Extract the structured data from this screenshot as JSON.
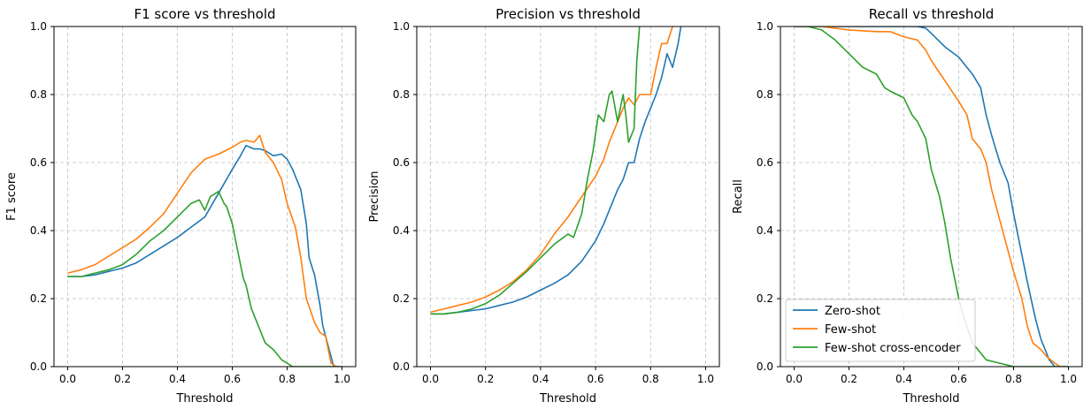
{
  "chart_data": [
    {
      "type": "line",
      "title": "F1 score vs threshold",
      "xlabel": "Threshold",
      "ylabel": "F1 score",
      "xlim": [
        -0.05,
        1.05
      ],
      "ylim": [
        0,
        1
      ],
      "xticks": [
        "0.0",
        "0.2",
        "0.4",
        "0.6",
        "0.8",
        "1.0"
      ],
      "yticks": [
        "0.0",
        "0.2",
        "0.4",
        "0.6",
        "0.8",
        "1.0"
      ],
      "grid": true,
      "series": [
        {
          "name": "Zero-shot",
          "color": "#1f77b4",
          "x": [
            0.0,
            0.05,
            0.1,
            0.15,
            0.2,
            0.25,
            0.3,
            0.35,
            0.4,
            0.45,
            0.5,
            0.55,
            0.6,
            0.63,
            0.65,
            0.68,
            0.7,
            0.72,
            0.75,
            0.78,
            0.8,
            0.82,
            0.85,
            0.87,
            0.88,
            0.9,
            0.92,
            0.93,
            0.95,
            0.97,
            1.0
          ],
          "y": [
            0.265,
            0.265,
            0.27,
            0.28,
            0.29,
            0.305,
            0.33,
            0.355,
            0.38,
            0.41,
            0.44,
            0.51,
            0.58,
            0.62,
            0.65,
            0.64,
            0.64,
            0.635,
            0.62,
            0.625,
            0.61,
            0.58,
            0.52,
            0.42,
            0.32,
            0.27,
            0.18,
            0.12,
            0.06,
            0.0,
            0.0
          ]
        },
        {
          "name": "Few-shot",
          "color": "#ff7f0e",
          "x": [
            0.0,
            0.05,
            0.1,
            0.15,
            0.2,
            0.25,
            0.3,
            0.35,
            0.4,
            0.45,
            0.5,
            0.55,
            0.6,
            0.63,
            0.65,
            0.68,
            0.7,
            0.72,
            0.75,
            0.78,
            0.8,
            0.83,
            0.85,
            0.87,
            0.9,
            0.92,
            0.94,
            0.96,
            0.98,
            1.0
          ],
          "y": [
            0.275,
            0.285,
            0.3,
            0.325,
            0.35,
            0.375,
            0.41,
            0.45,
            0.51,
            0.57,
            0.61,
            0.625,
            0.645,
            0.66,
            0.665,
            0.66,
            0.68,
            0.63,
            0.6,
            0.55,
            0.48,
            0.41,
            0.32,
            0.2,
            0.13,
            0.1,
            0.09,
            0.01,
            0.0,
            0.0
          ]
        },
        {
          "name": "Few-shot cross-encoder",
          "color": "#2ca02c",
          "x": [
            0.0,
            0.05,
            0.1,
            0.15,
            0.2,
            0.25,
            0.3,
            0.35,
            0.4,
            0.45,
            0.48,
            0.5,
            0.52,
            0.55,
            0.57,
            0.58,
            0.6,
            0.62,
            0.64,
            0.65,
            0.67,
            0.7,
            0.72,
            0.75,
            0.78,
            0.8,
            0.82,
            1.0
          ],
          "y": [
            0.265,
            0.265,
            0.275,
            0.285,
            0.3,
            0.33,
            0.37,
            0.4,
            0.44,
            0.48,
            0.49,
            0.46,
            0.5,
            0.515,
            0.48,
            0.47,
            0.42,
            0.34,
            0.26,
            0.24,
            0.17,
            0.11,
            0.07,
            0.05,
            0.02,
            0.01,
            0.0,
            0.0
          ]
        }
      ]
    },
    {
      "type": "line",
      "title": "Precision vs threshold",
      "xlabel": "Threshold",
      "ylabel": "Precision",
      "xlim": [
        -0.05,
        1.05
      ],
      "ylim": [
        0,
        1
      ],
      "xticks": [
        "0.0",
        "0.2",
        "0.4",
        "0.6",
        "0.8",
        "1.0"
      ],
      "yticks": [
        "0.0",
        "0.2",
        "0.4",
        "0.6",
        "0.8",
        "1.0"
      ],
      "grid": true,
      "series": [
        {
          "name": "Zero-shot",
          "color": "#1f77b4",
          "x": [
            0.0,
            0.05,
            0.1,
            0.15,
            0.2,
            0.25,
            0.3,
            0.35,
            0.4,
            0.45,
            0.5,
            0.55,
            0.6,
            0.63,
            0.65,
            0.68,
            0.7,
            0.72,
            0.74,
            0.76,
            0.78,
            0.8,
            0.82,
            0.84,
            0.86,
            0.88,
            0.9,
            0.91
          ],
          "y": [
            0.155,
            0.155,
            0.16,
            0.165,
            0.17,
            0.18,
            0.19,
            0.205,
            0.225,
            0.245,
            0.27,
            0.31,
            0.37,
            0.42,
            0.46,
            0.52,
            0.55,
            0.6,
            0.6,
            0.67,
            0.72,
            0.76,
            0.8,
            0.85,
            0.92,
            0.88,
            0.95,
            1.0
          ]
        },
        {
          "name": "Few-shot",
          "color": "#ff7f0e",
          "x": [
            0.0,
            0.05,
            0.1,
            0.15,
            0.2,
            0.25,
            0.3,
            0.35,
            0.4,
            0.45,
            0.5,
            0.55,
            0.6,
            0.63,
            0.65,
            0.68,
            0.7,
            0.72,
            0.74,
            0.76,
            0.78,
            0.8,
            0.82,
            0.84,
            0.86,
            0.88
          ],
          "y": [
            0.16,
            0.17,
            0.18,
            0.19,
            0.205,
            0.225,
            0.25,
            0.285,
            0.33,
            0.39,
            0.44,
            0.5,
            0.56,
            0.61,
            0.66,
            0.72,
            0.76,
            0.79,
            0.77,
            0.8,
            0.8,
            0.8,
            0.88,
            0.95,
            0.95,
            1.0
          ]
        },
        {
          "name": "Few-shot cross-encoder",
          "color": "#2ca02c",
          "x": [
            0.0,
            0.05,
            0.1,
            0.15,
            0.2,
            0.25,
            0.3,
            0.35,
            0.4,
            0.45,
            0.5,
            0.52,
            0.55,
            0.57,
            0.59,
            0.61,
            0.63,
            0.65,
            0.66,
            0.68,
            0.7,
            0.71,
            0.72,
            0.74,
            0.75,
            0.76
          ],
          "y": [
            0.155,
            0.155,
            0.16,
            0.17,
            0.185,
            0.21,
            0.245,
            0.28,
            0.32,
            0.36,
            0.39,
            0.38,
            0.45,
            0.55,
            0.63,
            0.74,
            0.72,
            0.8,
            0.81,
            0.72,
            0.8,
            0.74,
            0.66,
            0.7,
            0.9,
            1.0
          ]
        }
      ]
    },
    {
      "type": "line",
      "title": "Recall vs threshold",
      "xlabel": "Threshold",
      "ylabel": "Recall",
      "xlim": [
        -0.05,
        1.05
      ],
      "ylim": [
        0,
        1
      ],
      "xticks": [
        "0.0",
        "0.2",
        "0.4",
        "0.6",
        "0.8",
        "1.0"
      ],
      "yticks": [
        "0.0",
        "0.2",
        "0.4",
        "0.6",
        "0.8",
        "1.0"
      ],
      "grid": true,
      "legend": {
        "position": "lower-left",
        "entries": [
          "Zero-shot",
          "Few-shot",
          "Few-shot cross-encoder"
        ]
      },
      "series": [
        {
          "name": "Zero-shot",
          "color": "#1f77b4",
          "x": [
            0.0,
            0.1,
            0.2,
            0.3,
            0.4,
            0.45,
            0.48,
            0.5,
            0.55,
            0.6,
            0.63,
            0.65,
            0.68,
            0.7,
            0.72,
            0.75,
            0.78,
            0.8,
            0.82,
            0.85,
            0.88,
            0.9,
            0.92,
            0.93,
            0.95,
            0.97,
            1.0
          ],
          "y": [
            1.0,
            1.0,
            1.0,
            1.0,
            1.0,
            1.0,
            0.995,
            0.98,
            0.94,
            0.91,
            0.88,
            0.86,
            0.82,
            0.74,
            0.68,
            0.6,
            0.54,
            0.45,
            0.37,
            0.25,
            0.14,
            0.08,
            0.04,
            0.02,
            0.0,
            0.0,
            0.0
          ]
        },
        {
          "name": "Few-shot",
          "color": "#ff7f0e",
          "x": [
            0.0,
            0.1,
            0.2,
            0.3,
            0.35,
            0.4,
            0.45,
            0.48,
            0.5,
            0.55,
            0.6,
            0.63,
            0.65,
            0.68,
            0.7,
            0.72,
            0.75,
            0.78,
            0.8,
            0.83,
            0.85,
            0.87,
            0.9,
            0.92,
            0.95,
            0.97,
            1.0
          ],
          "y": [
            1.0,
            1.0,
            0.99,
            0.985,
            0.985,
            0.97,
            0.96,
            0.93,
            0.9,
            0.84,
            0.78,
            0.74,
            0.67,
            0.64,
            0.6,
            0.52,
            0.43,
            0.34,
            0.28,
            0.2,
            0.12,
            0.07,
            0.05,
            0.03,
            0.01,
            0.0,
            0.0
          ]
        },
        {
          "name": "Few-shot cross-encoder",
          "color": "#2ca02c",
          "x": [
            0.0,
            0.05,
            0.1,
            0.15,
            0.2,
            0.25,
            0.3,
            0.33,
            0.35,
            0.4,
            0.43,
            0.45,
            0.48,
            0.5,
            0.53,
            0.55,
            0.57,
            0.6,
            0.62,
            0.65,
            0.68,
            0.7,
            0.75,
            0.8,
            0.82,
            1.0
          ],
          "y": [
            1.0,
            1.0,
            0.99,
            0.96,
            0.92,
            0.88,
            0.86,
            0.82,
            0.81,
            0.79,
            0.74,
            0.72,
            0.67,
            0.58,
            0.5,
            0.42,
            0.32,
            0.2,
            0.14,
            0.07,
            0.04,
            0.02,
            0.01,
            0.0,
            0.0,
            0.0
          ]
        }
      ]
    }
  ]
}
